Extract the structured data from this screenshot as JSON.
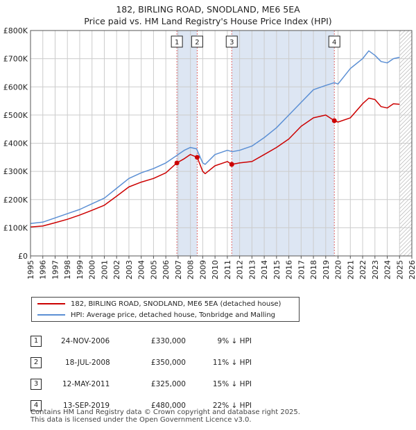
{
  "header": {
    "title": "182, BIRLING ROAD, SNODLAND, ME6 5EA",
    "subtitle": "Price paid vs. HM Land Registry's House Price Index (HPI)"
  },
  "legend": {
    "property_label": "182, BIRLING ROAD, SNODLAND, ME6 5EA (detached house)",
    "hpi_label": "HPI: Average price, detached house, Tonbridge and Malling"
  },
  "colors": {
    "property": "#cc0000",
    "hpi": "#5b8fd4",
    "shade": "#dde6f3",
    "grid": "#cccccc"
  },
  "sales": [
    {
      "num": "1",
      "date": "24-NOV-2006",
      "price": "£330,000",
      "hpi": "9% ↓ HPI"
    },
    {
      "num": "2",
      "date": "18-JUL-2008",
      "price": "£350,000",
      "hpi": "11% ↓ HPI"
    },
    {
      "num": "3",
      "date": "12-MAY-2011",
      "price": "£325,000",
      "hpi": "15% ↓ HPI"
    },
    {
      "num": "4",
      "date": "13-SEP-2019",
      "price": "£480,000",
      "hpi": "22% ↓ HPI"
    }
  ],
  "footer": {
    "line1": "Contains HM Land Registry data © Crown copyright and database right 2025.",
    "line2": "This data is licensed under the Open Government Licence v3.0."
  },
  "chart_data": {
    "type": "line",
    "x_range": [
      1995,
      2026
    ],
    "ylim": [
      0,
      800000
    ],
    "y_ticks": [
      {
        "value": 0,
        "label": "£0"
      },
      {
        "value": 100000,
        "label": "£100K"
      },
      {
        "value": 200000,
        "label": "£200K"
      },
      {
        "value": 300000,
        "label": "£300K"
      },
      {
        "value": 400000,
        "label": "£400K"
      },
      {
        "value": 500000,
        "label": "£500K"
      },
      {
        "value": 600000,
        "label": "£600K"
      },
      {
        "value": 700000,
        "label": "£700K"
      },
      {
        "value": 800000,
        "label": "£800K"
      }
    ],
    "x_ticks": [
      "1995",
      "1996",
      "1997",
      "1998",
      "1999",
      "2000",
      "2001",
      "2002",
      "2003",
      "2004",
      "2005",
      "2006",
      "2007",
      "2008",
      "2009",
      "2010",
      "2011",
      "2012",
      "2013",
      "2014",
      "2015",
      "2016",
      "2017",
      "2018",
      "2019",
      "2020",
      "2021",
      "2022",
      "2023",
      "2024",
      "2025",
      "2026"
    ],
    "grid": true,
    "shaded_periods": [
      [
        2006.9,
        2008.55
      ],
      [
        2011.36,
        2019.7
      ]
    ],
    "hatched_from": 2025.0,
    "sale_markers": [
      {
        "label": "1",
        "x": 2006.9,
        "y": 330000
      },
      {
        "label": "2",
        "x": 2008.55,
        "y": 350000
      },
      {
        "label": "3",
        "x": 2011.36,
        "y": 325000
      },
      {
        "label": "4",
        "x": 2019.7,
        "y": 480000
      }
    ],
    "series": [
      {
        "name": "HPI: Average price, detached house, Tonbridge and Malling",
        "x": [
          1995,
          1996,
          1997,
          1998,
          1999,
          2000,
          2001,
          2002,
          2003,
          2004,
          2005,
          2006,
          2007,
          2007.5,
          2008,
          2008.5,
          2009,
          2009.2,
          2010,
          2011,
          2011.4,
          2012,
          2013,
          2014,
          2015,
          2016,
          2017,
          2018,
          2019,
          2019.7,
          2020,
          2021,
          2022,
          2022.5,
          2023,
          2023.5,
          2024,
          2024.5,
          2025
        ],
        "y": [
          115000,
          120000,
          135000,
          150000,
          165000,
          185000,
          205000,
          240000,
          275000,
          295000,
          310000,
          330000,
          360000,
          375000,
          385000,
          380000,
          330000,
          325000,
          360000,
          375000,
          370000,
          375000,
          390000,
          420000,
          455000,
          500000,
          545000,
          590000,
          605000,
          615000,
          610000,
          665000,
          700000,
          728000,
          712000,
          690000,
          685000,
          700000,
          705000
        ]
      },
      {
        "name": "182, BIRLING ROAD, SNODLAND, ME6 5EA (detached house)",
        "x": [
          1995,
          1996,
          1997,
          1998,
          1999,
          2000,
          2001,
          2002,
          2003,
          2004,
          2005,
          2006,
          2006.9,
          2007.5,
          2008,
          2008.55,
          2009,
          2009.2,
          2010,
          2011,
          2011.36,
          2012,
          2013,
          2014,
          2015,
          2016,
          2017,
          2018,
          2019,
          2019.7,
          2020,
          2021,
          2022,
          2022.5,
          2023,
          2023.5,
          2024,
          2024.5,
          2025
        ],
        "y": [
          103000,
          106000,
          118000,
          130000,
          145000,
          162000,
          180000,
          212000,
          245000,
          262000,
          275000,
          295000,
          330000,
          345000,
          360000,
          350000,
          300000,
          292000,
          320000,
          335000,
          325000,
          330000,
          335000,
          360000,
          385000,
          415000,
          460000,
          490000,
          500000,
          480000,
          475000,
          490000,
          540000,
          560000,
          555000,
          530000,
          525000,
          540000,
          538000
        ]
      }
    ]
  }
}
